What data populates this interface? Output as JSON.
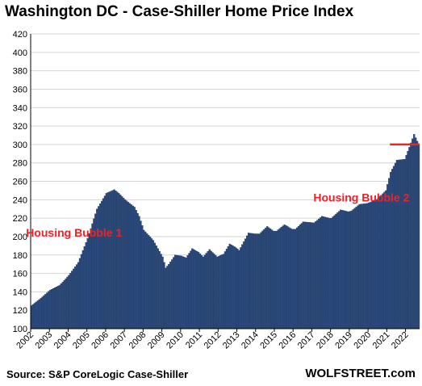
{
  "title": "Washington DC - Case-Shiller Home Price Index",
  "source": "Source: S&P CoreLogic Case-Shiller",
  "brand": "WOLFSTREET.com",
  "colors": {
    "bar": "#2b4a7b",
    "bar_edge": "#1c345c",
    "annotation": "#e8242b",
    "grid": "#d4d4d4"
  },
  "chart_data": {
    "type": "bar",
    "title": "Washington DC - Case-Shiller Home Price Index",
    "xlabel": "",
    "ylabel": "",
    "ylim": [
      100,
      420
    ],
    "yticks": [
      100,
      120,
      140,
      160,
      180,
      200,
      220,
      240,
      260,
      280,
      300,
      320,
      340,
      360,
      380,
      400,
      420
    ],
    "xticks": [
      "2002",
      "2003",
      "2004",
      "2005",
      "2006",
      "2007",
      "2008",
      "2009",
      "2010",
      "2011",
      "2012",
      "2013",
      "2014",
      "2015",
      "2016",
      "2017",
      "2018",
      "2019",
      "2020",
      "2021",
      "2022"
    ],
    "grid": true,
    "frequency": "monthly",
    "anchors": [
      [
        "2002-01",
        125
      ],
      [
        "2002-07",
        133
      ],
      [
        "2003-01",
        142
      ],
      [
        "2003-07",
        147
      ],
      [
        "2004-01",
        158
      ],
      [
        "2004-07",
        172
      ],
      [
        "2005-01",
        198
      ],
      [
        "2005-07",
        230
      ],
      [
        "2006-01",
        247
      ],
      [
        "2006-06",
        251
      ],
      [
        "2006-09",
        247
      ],
      [
        "2007-01",
        240
      ],
      [
        "2007-07",
        232
      ],
      [
        "2007-10",
        222
      ],
      [
        "2008-01",
        207
      ],
      [
        "2008-07",
        196
      ],
      [
        "2009-01",
        178
      ],
      [
        "2009-03",
        166
      ],
      [
        "2009-05",
        170
      ],
      [
        "2009-09",
        180
      ],
      [
        "2010-01",
        179
      ],
      [
        "2010-04",
        177
      ],
      [
        "2010-08",
        187
      ],
      [
        "2010-12",
        183
      ],
      [
        "2011-03",
        178
      ],
      [
        "2011-07",
        186
      ],
      [
        "2011-12",
        178
      ],
      [
        "2012-04",
        181
      ],
      [
        "2012-08",
        192
      ],
      [
        "2012-12",
        188
      ],
      [
        "2013-02",
        185
      ],
      [
        "2013-08",
        204
      ],
      [
        "2013-12",
        203
      ],
      [
        "2014-03",
        203
      ],
      [
        "2014-08",
        211
      ],
      [
        "2014-12",
        206
      ],
      [
        "2015-02",
        206
      ],
      [
        "2015-07",
        213
      ],
      [
        "2015-12",
        208
      ],
      [
        "2016-02",
        208
      ],
      [
        "2016-07",
        216
      ],
      [
        "2017-02",
        215
      ],
      [
        "2017-07",
        222
      ],
      [
        "2017-12",
        220
      ],
      [
        "2018-01",
        220
      ],
      [
        "2018-07",
        229
      ],
      [
        "2018-12",
        227
      ],
      [
        "2019-02",
        228
      ],
      [
        "2019-07",
        235
      ],
      [
        "2019-12",
        236
      ],
      [
        "2020-06",
        240
      ],
      [
        "2020-12",
        250
      ],
      [
        "2021-03",
        270
      ],
      [
        "2021-07",
        283
      ],
      [
        "2021-12",
        284
      ],
      [
        "2022-03",
        297
      ],
      [
        "2022-06",
        311
      ],
      [
        "2022-09",
        300
      ]
    ],
    "reference_line": {
      "value": 300,
      "from": "2021-03",
      "to": "2022-09"
    },
    "annotations": [
      {
        "text": "Housing Bubble 1",
        "x": "2001-10",
        "y": 200
      },
      {
        "text": "Housing Bubble 2",
        "x": "2017-02",
        "y": 238
      }
    ]
  }
}
